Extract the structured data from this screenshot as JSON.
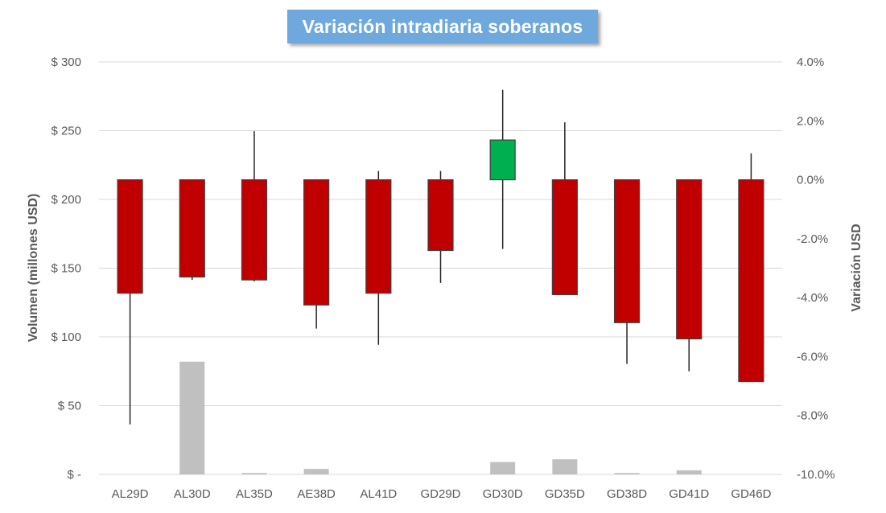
{
  "chart_data": {
    "type": "candlestick+bar",
    "title": "Variación intradiaria soberanos",
    "categories": [
      "AL29D",
      "AL30D",
      "AL35D",
      "AE38D",
      "AL41D",
      "GD29D",
      "GD30D",
      "GD35D",
      "GD38D",
      "GD41D",
      "GD46D"
    ],
    "left_axis": {
      "label": "Volumen (millones USD)",
      "range": [
        0,
        300
      ],
      "ticks": [
        0,
        50,
        100,
        150,
        200,
        250,
        300
      ],
      "tick_labels": [
        "$ -",
        "$ 50",
        "$ 100",
        "$ 150",
        "$ 200",
        "$ 250",
        "$ 300"
      ]
    },
    "right_axis": {
      "label": "Variación USD",
      "range": [
        -10,
        4
      ],
      "ticks": [
        4,
        2,
        0,
        -2,
        -4,
        -6,
        -8,
        -10
      ],
      "tick_labels": [
        "4.0%",
        "2.0%",
        "0.0%",
        "-2.0%",
        "-4.0%",
        "-6.0%",
        "-8.0%",
        "-10.0%"
      ]
    },
    "volume": {
      "color": "#c0c0c0",
      "values": [
        0,
        82,
        1,
        4,
        0,
        0,
        9,
        11,
        1,
        3,
        0
      ]
    },
    "candles": {
      "up_color": "#00b050",
      "down_color": "#c00000",
      "open": [
        0,
        0,
        0,
        0,
        0,
        0,
        0,
        0,
        0,
        0,
        0
      ],
      "close": [
        -3.85,
        -3.3,
        -3.4,
        -4.25,
        -3.85,
        -2.4,
        1.35,
        -3.9,
        -4.85,
        -5.4,
        -6.85
      ],
      "high": [
        0,
        0,
        1.65,
        0,
        0.3,
        0.3,
        3.05,
        1.95,
        0,
        0,
        0.9
      ],
      "low": [
        -8.3,
        -3.4,
        -3.45,
        -5.05,
        -5.6,
        -3.5,
        -2.35,
        -3.9,
        -6.25,
        -6.5,
        -6.85
      ]
    },
    "grid": true,
    "legend": "none"
  }
}
